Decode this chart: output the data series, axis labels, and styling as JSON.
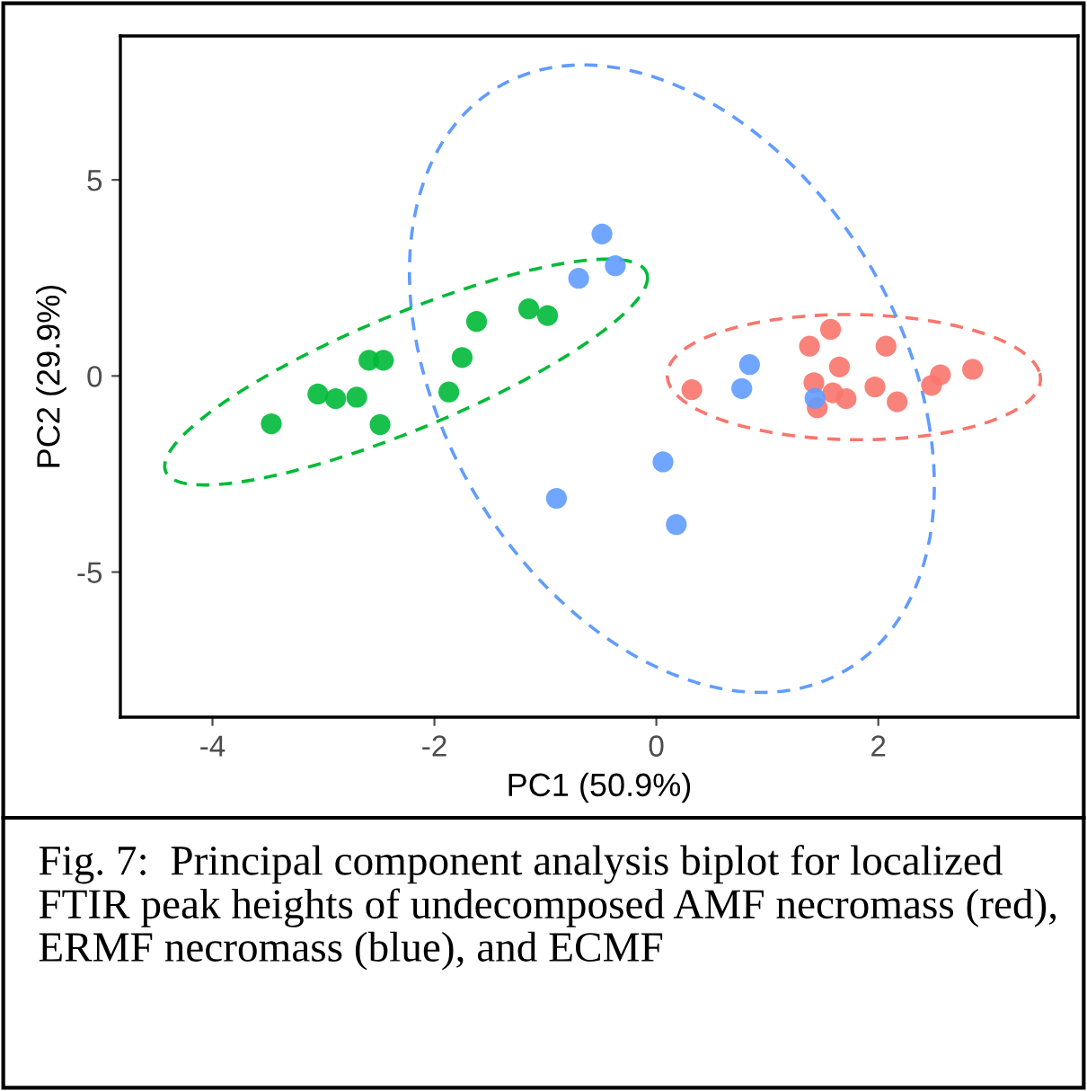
{
  "chart_data": {
    "type": "scatter",
    "xlabel": "PC1 (50.9%)",
    "ylabel": "PC2 (29.9%)",
    "xlim": [
      -4.83,
      3.8
    ],
    "ylim": [
      -8.7,
      8.67
    ],
    "xticks": [
      -4,
      -2,
      0,
      2
    ],
    "yticks": [
      -5,
      0,
      5
    ],
    "grid": false,
    "marker": "circle",
    "annotations": [
      "Fig. 7:  Principal component analysis biplot for localized FTIR peak heights of undecomposed AMF necromass (red), ERMF necromass (blue), and ECMF"
    ],
    "series": [
      {
        "color": "#f8766d",
        "x": [
          0.32,
          1.38,
          1.57,
          2.07,
          1.65,
          1.42,
          1.59,
          1.71,
          1.45,
          1.97,
          2.17,
          2.48,
          2.56,
          2.85
        ],
        "values": [
          -0.35,
          0.76,
          1.19,
          0.76,
          0.23,
          -0.17,
          -0.43,
          -0.58,
          -0.81,
          -0.28,
          -0.66,
          -0.24,
          0.03,
          0.17
        ]
      },
      {
        "color": "#619cff",
        "x": [
          -0.49,
          -0.7,
          -0.37,
          -0.9,
          0.06,
          0.18,
          0.84,
          0.77,
          1.43
        ],
        "values": [
          3.62,
          2.49,
          2.81,
          -3.12,
          -2.19,
          -3.79,
          0.29,
          -0.32,
          -0.57
        ]
      },
      {
        "color": "#00ba38",
        "x": [
          -3.47,
          -3.05,
          -2.89,
          -2.7,
          -2.59,
          -2.46,
          -2.49,
          -1.87,
          -1.75,
          -1.62,
          -1.15,
          -0.98
        ],
        "values": [
          -1.22,
          -0.46,
          -0.58,
          -0.54,
          0.4,
          0.4,
          -1.24,
          -0.41,
          0.47,
          1.39,
          1.71,
          1.54
        ]
      }
    ]
  }
}
